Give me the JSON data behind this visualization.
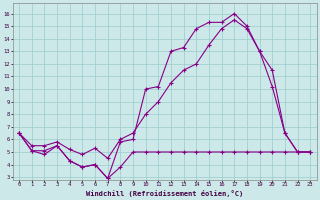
{
  "xlabel": "Windchill (Refroidissement éolien,°C)",
  "bg_color": "#cce8e8",
  "line_color": "#880088",
  "grid_color": "#99cccc",
  "xlim": [
    -0.5,
    23.5
  ],
  "ylim": [
    2.8,
    16.8
  ],
  "xticks": [
    0,
    1,
    2,
    3,
    4,
    5,
    6,
    7,
    8,
    9,
    10,
    11,
    12,
    13,
    14,
    15,
    16,
    17,
    18,
    19,
    20,
    21,
    22,
    23
  ],
  "yticks": [
    3,
    4,
    5,
    6,
    7,
    8,
    9,
    10,
    11,
    12,
    13,
    14,
    15,
    16
  ],
  "series1_x": [
    0,
    1,
    2,
    3,
    4,
    5,
    6,
    7,
    8,
    9,
    10,
    11,
    12,
    13,
    14,
    15,
    16,
    17,
    18,
    19,
    20,
    21,
    22,
    23
  ],
  "series1_y": [
    6.5,
    5.1,
    4.8,
    5.5,
    4.3,
    3.8,
    4.0,
    2.9,
    3.8,
    5.0,
    5.0,
    5.0,
    5.0,
    5.0,
    5.0,
    5.0,
    5.0,
    5.0,
    5.0,
    5.0,
    5.0,
    5.0,
    5.0,
    5.0
  ],
  "series2_x": [
    0,
    1,
    2,
    3,
    4,
    5,
    6,
    7,
    8,
    9,
    10,
    11,
    12,
    13,
    14,
    15,
    16,
    17,
    18,
    19,
    20,
    21,
    22,
    23
  ],
  "series2_y": [
    6.5,
    5.1,
    5.1,
    5.5,
    4.3,
    3.8,
    4.0,
    2.9,
    5.8,
    6.0,
    10.0,
    10.2,
    13.0,
    13.3,
    14.8,
    15.3,
    15.3,
    16.0,
    15.0,
    13.0,
    10.2,
    6.5,
    5.0,
    5.0
  ],
  "series3_x": [
    0,
    1,
    2,
    3,
    4,
    5,
    6,
    7,
    8,
    9,
    10,
    11,
    12,
    13,
    14,
    15,
    16,
    17,
    18,
    19,
    20,
    21,
    22,
    23
  ],
  "series3_y": [
    6.5,
    5.5,
    5.5,
    5.8,
    5.2,
    4.8,
    5.3,
    4.5,
    6.0,
    6.5,
    8.0,
    9.0,
    10.5,
    11.5,
    12.0,
    13.5,
    14.8,
    15.5,
    14.8,
    13.0,
    11.5,
    6.5,
    5.0,
    5.0
  ]
}
